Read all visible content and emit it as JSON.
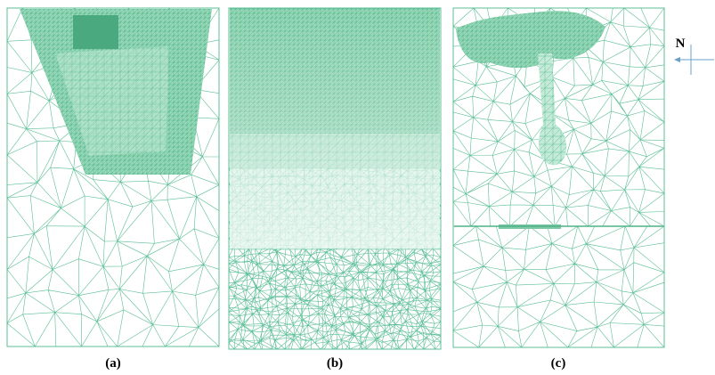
{
  "panels": [
    {
      "label": "(a)"
    },
    {
      "label": "(b)"
    },
    {
      "label": "(c)"
    }
  ],
  "compass": {
    "label": "N"
  }
}
